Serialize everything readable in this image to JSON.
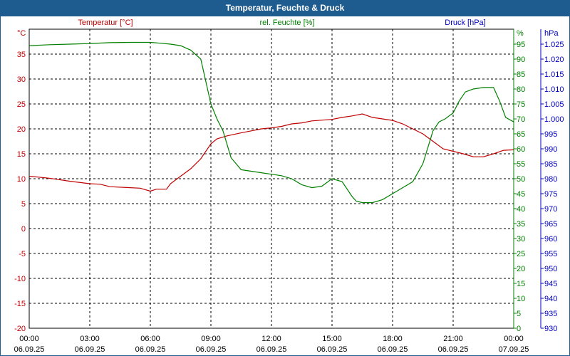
{
  "window": {
    "title": "Temperatur, Feuchte & Druck"
  },
  "chart_data": {
    "type": "line",
    "title": "Temperatur, Feuchte & Druck",
    "grid": true,
    "x_ticks": [
      {
        "time": "00:00",
        "date": "06.09.25"
      },
      {
        "time": "03:00",
        "date": "06.09.25"
      },
      {
        "time": "06:00",
        "date": "06.09.25"
      },
      {
        "time": "09:00",
        "date": "06.09.25"
      },
      {
        "time": "12:00",
        "date": "06.09.25"
      },
      {
        "time": "15:00",
        "date": "06.09.25"
      },
      {
        "time": "18:00",
        "date": "06.09.25"
      },
      {
        "time": "21:00",
        "date": "06.09.25"
      },
      {
        "time": "00:00",
        "date": "07.09.25"
      }
    ],
    "xlim": [
      0,
      24
    ],
    "axes": {
      "temperature": {
        "label": "Temperatur [°C]",
        "unit": "°C",
        "range": [
          -20,
          40
        ],
        "ticks": [
          -20,
          -15,
          -10,
          -5,
          0,
          5,
          10,
          15,
          20,
          25,
          30,
          35
        ],
        "color": "#c00000"
      },
      "humidity": {
        "label": "rel. Feuchte [%]",
        "unit": "%",
        "range": [
          0,
          100
        ],
        "ticks": [
          0,
          5,
          10,
          15,
          20,
          25,
          30,
          35,
          40,
          45,
          50,
          55,
          60,
          65,
          70,
          75,
          80,
          85,
          90,
          95
        ],
        "color": "#008000"
      },
      "pressure": {
        "label": "Druck [hPa]",
        "unit": "hPa",
        "range": [
          930,
          1030
        ],
        "ticks": [
          930,
          935,
          940,
          945,
          950,
          955,
          960,
          965,
          970,
          975,
          980,
          985,
          990,
          995,
          1000,
          1005,
          1010,
          1015,
          1020,
          1025
        ],
        "color": "#0000c0",
        "tick_labels": [
          "930",
          "935",
          "940",
          "945",
          "950",
          "955",
          "960",
          "965",
          "970",
          "975",
          "980",
          "985",
          "990",
          "995",
          "1.000",
          "1.005",
          "1.010",
          "1.015",
          "1.020",
          "1.025"
        ]
      }
    },
    "series": [
      {
        "name": "Temperatur [°C]",
        "axis": "temperature",
        "color": "#c00000",
        "x": [
          0,
          1,
          2,
          3,
          3.5,
          4,
          5,
          5.5,
          6,
          6.3,
          6.8,
          7,
          7.5,
          8,
          8.5,
          9,
          9.3,
          9.8,
          10.5,
          11,
          11.5,
          12,
          12.5,
          13,
          13.5,
          14,
          15,
          15.5,
          16,
          16.5,
          17,
          17.5,
          18,
          18.5,
          19,
          19.5,
          20,
          20.5,
          21,
          21.5,
          22,
          22.5,
          23,
          23.5,
          24
        ],
        "values": [
          10.5,
          10.1,
          9.5,
          9.0,
          8.9,
          8.4,
          8.2,
          8.1,
          7.5,
          7.9,
          7.9,
          9.0,
          10.5,
          12.0,
          14.0,
          17.0,
          18.0,
          18.6,
          19.2,
          19.6,
          20.0,
          20.2,
          20.5,
          21.0,
          21.2,
          21.6,
          21.9,
          22.3,
          22.6,
          23.0,
          22.3,
          22.0,
          21.7,
          21.0,
          20.0,
          19.0,
          17.5,
          16.0,
          15.5,
          15.0,
          14.4,
          14.4,
          15.0,
          15.7,
          15.8
        ]
      },
      {
        "name": "rel. Feuchte [%]",
        "axis": "humidity",
        "color": "#008000",
        "x": [
          0,
          1,
          2,
          3,
          4,
          5,
          6,
          6.5,
          7,
          7.5,
          8,
          8.5,
          9,
          9.3,
          9.6,
          10,
          10.5,
          11,
          11.5,
          12,
          12.5,
          13,
          13.5,
          14,
          14.5,
          15,
          15.5,
          16,
          16.2,
          16.5,
          17,
          17.5,
          18,
          18.5,
          19,
          19.5,
          20,
          20.3,
          20.6,
          21,
          21.3,
          21.6,
          22,
          22.5,
          23,
          23.3,
          23.6,
          24
        ],
        "values": [
          94.5,
          94.8,
          95.0,
          95.2,
          95.5,
          95.6,
          95.6,
          95.3,
          95.0,
          94.5,
          93.0,
          90.0,
          75.0,
          70.0,
          66.0,
          57.0,
          53.0,
          52.5,
          52.0,
          51.5,
          51.0,
          50.0,
          48.0,
          47.0,
          47.5,
          50.0,
          49.0,
          44.0,
          42.5,
          42.0,
          42.0,
          43.0,
          45.0,
          47.0,
          49.0,
          55.0,
          66.0,
          69.0,
          70.0,
          72.0,
          76.0,
          79.0,
          80.0,
          80.5,
          80.5,
          76.0,
          70.5,
          69.0
        ]
      }
    ]
  }
}
